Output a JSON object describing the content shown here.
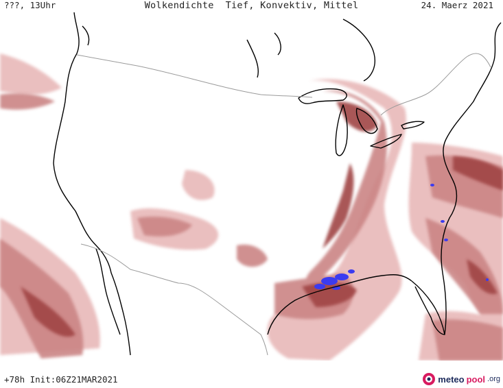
{
  "header": {
    "left": "???, 13Uhr",
    "title": "Wolkendichte  Tief, Konvektiv, Mittel",
    "date": "24. Maerz 2021"
  },
  "footer": {
    "run_info": "+78h Init:06Z21MAR2021"
  },
  "brand": {
    "part1": "meteo",
    "part2": "pool",
    "part3": ".org"
  },
  "map": {
    "colors": {
      "cloud_light": "#e5b5b5",
      "cloud_mid": "#c97a7a",
      "cloud_dark": "#9c3a3a",
      "convective": "#3b3bf0",
      "coast": "#000000",
      "border": "#9a9a9a"
    }
  }
}
